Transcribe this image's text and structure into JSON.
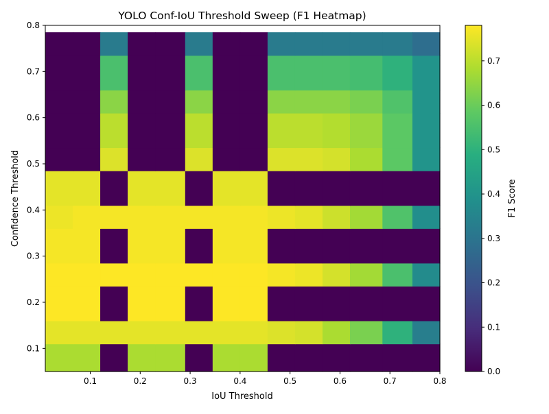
{
  "chart_data": {
    "type": "heatmap",
    "title": "YOLO Conf-IoU Threshold Sweep (F1 Heatmap)",
    "xlabel": "IoU Threshold",
    "ylabel": "Confidence Threshold",
    "colorbar_label": "F1 Score",
    "colormap": "viridis",
    "xlim": [
      0.01,
      0.8
    ],
    "ylim": [
      0.05,
      0.8
    ],
    "x_ticks": [
      0.1,
      0.2,
      0.3,
      0.4,
      0.5,
      0.6,
      0.7,
      0.8
    ],
    "x_tick_labels": [
      "0.1",
      "0.2",
      "0.3",
      "0.4",
      "0.5",
      "0.6",
      "0.7",
      "0.8"
    ],
    "y_ticks": [
      0.1,
      0.2,
      0.3,
      0.4,
      0.5,
      0.6,
      0.7,
      0.8
    ],
    "y_tick_labels": [
      "0.1",
      "0.2",
      "0.3",
      "0.4",
      "0.5",
      "0.6",
      "0.7",
      "0.8"
    ],
    "colorbar_range": [
      0.0,
      0.78
    ],
    "colorbar_ticks": [
      0.0,
      0.1,
      0.2,
      0.3,
      0.4,
      0.5,
      0.6,
      0.7
    ],
    "colorbar_tick_labels": [
      "0.0",
      "0.1",
      "0.2",
      "0.3",
      "0.4",
      "0.5",
      "0.6",
      "0.7"
    ],
    "x_edges": [
      0.01,
      0.065,
      0.12,
      0.175,
      0.23,
      0.29,
      0.345,
      0.4,
      0.455,
      0.51,
      0.565,
      0.62,
      0.685,
      0.745,
      0.8
    ],
    "y_edges": [
      0.05,
      0.11,
      0.16,
      0.235,
      0.285,
      0.36,
      0.41,
      0.485,
      0.535,
      0.61,
      0.66,
      0.735,
      0.785
    ],
    "values": [
      [
        0.68,
        0.68,
        0.0,
        0.68,
        0.68,
        0.0,
        0.68,
        0.68,
        0.0,
        0.0,
        0.0,
        0.0,
        0.0,
        0.0
      ],
      [
        0.75,
        0.75,
        0.75,
        0.75,
        0.75,
        0.75,
        0.75,
        0.75,
        0.74,
        0.73,
        0.68,
        0.62,
        0.5,
        0.33
      ],
      [
        0.78,
        0.78,
        0.0,
        0.78,
        0.78,
        0.0,
        0.78,
        0.78,
        0.0,
        0.0,
        0.0,
        0.0,
        0.0,
        0.0
      ],
      [
        0.78,
        0.78,
        0.78,
        0.78,
        0.78,
        0.78,
        0.78,
        0.78,
        0.77,
        0.76,
        0.73,
        0.67,
        0.55,
        0.37
      ],
      [
        0.77,
        0.77,
        0.0,
        0.77,
        0.77,
        0.0,
        0.77,
        0.77,
        0.0,
        0.0,
        0.0,
        0.0,
        0.0,
        0.0
      ],
      [
        0.76,
        0.77,
        0.77,
        0.77,
        0.77,
        0.77,
        0.77,
        0.77,
        0.76,
        0.75,
        0.72,
        0.67,
        0.56,
        0.38
      ],
      [
        0.75,
        0.75,
        0.0,
        0.75,
        0.75,
        0.0,
        0.75,
        0.75,
        0.0,
        0.0,
        0.0,
        0.0,
        0.0,
        0.0
      ],
      [
        0.0,
        0.0,
        0.74,
        0.0,
        0.0,
        0.74,
        0.0,
        0.0,
        0.74,
        0.74,
        0.73,
        0.68,
        0.58,
        0.4
      ],
      [
        0.0,
        0.0,
        0.7,
        0.0,
        0.0,
        0.7,
        0.0,
        0.0,
        0.7,
        0.7,
        0.69,
        0.66,
        0.58,
        0.4
      ],
      [
        0.0,
        0.0,
        0.64,
        0.0,
        0.0,
        0.64,
        0.0,
        0.0,
        0.64,
        0.64,
        0.64,
        0.62,
        0.56,
        0.4
      ],
      [
        0.0,
        0.0,
        0.55,
        0.0,
        0.0,
        0.55,
        0.0,
        0.0,
        0.55,
        0.55,
        0.55,
        0.54,
        0.5,
        0.4
      ],
      [
        0.0,
        0.0,
        0.32,
        0.0,
        0.0,
        0.32,
        0.0,
        0.0,
        0.32,
        0.32,
        0.32,
        0.32,
        0.32,
        0.28
      ]
    ]
  }
}
